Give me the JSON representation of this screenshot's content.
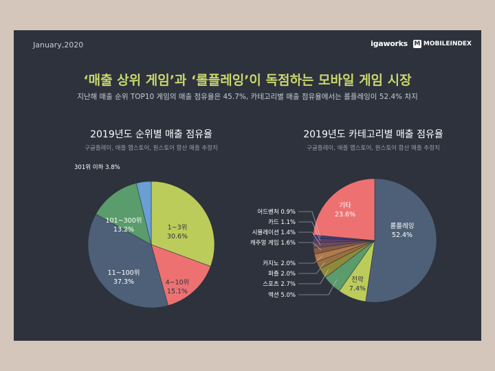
{
  "header": {
    "date": "January,2020",
    "brand_igaworks": "igaworks",
    "brand_mobileindex": "MOBILEINDEX",
    "brand_logo_letter": "M"
  },
  "title": "‘매출 상위 게임’과 ‘롤플레잉’이 독점하는 모바일 게임 시장",
  "subtitle": "지난해 매출 순위 TOP10 게임의 매출 점유율은 45.7%, 카테고리별 매출 점유율에서는 롤플레잉이 52.4% 차지",
  "chart_data": [
    {
      "type": "pie",
      "title": "2019년도 순위별 매출 점유율",
      "note": "구글플레이, 애플 앱스토어, 원스토어 합산 매출 추정치",
      "slices": [
        {
          "label": "1~3위",
          "value": 30.6,
          "display": "30.6%",
          "color": "#bccc5a"
        },
        {
          "label": "4~10위",
          "value": 15.1,
          "display": "15.1%",
          "color": "#ee7171"
        },
        {
          "label": "11~100위",
          "value": 37.3,
          "display": "37.3%",
          "color": "#4e6077"
        },
        {
          "label": "101~300위",
          "value": 13.2,
          "display": "13.2%",
          "color": "#5a9c6b"
        },
        {
          "label": "301위 이하",
          "value": 3.8,
          "display": "3.8%",
          "color": "#6a9fd4"
        }
      ]
    },
    {
      "type": "pie",
      "title": "2019년도 카테고리별 매출 점유율",
      "note": "구글플레이, 애플 앱스토어, 원스토어 합산 매출 추정치",
      "slices": [
        {
          "label": "롤플레잉",
          "value": 52.4,
          "display": "52.4%",
          "color": "#4e6077"
        },
        {
          "label": "전략",
          "value": 7.4,
          "display": "7.4%",
          "color": "#bccc5a"
        },
        {
          "label": "액션",
          "value": 5.0,
          "display": "5.0%",
          "color": "#5a9c6b"
        },
        {
          "label": "스포츠",
          "value": 2.7,
          "display": "2.7%",
          "color": "#8d8a3a"
        },
        {
          "label": "퍼즐",
          "value": 2.0,
          "display": "2.0%",
          "color": "#9a7040"
        },
        {
          "label": "카지노",
          "value": 2.0,
          "display": "2.0%",
          "color": "#b07a4a"
        },
        {
          "label": "캐주얼 게임",
          "value": 1.6,
          "display": "1.6%",
          "color": "#8a5a45"
        },
        {
          "label": "시뮬레이션",
          "value": 1.4,
          "display": "1.4%",
          "color": "#6a4a5a"
        },
        {
          "label": "카드",
          "value": 1.1,
          "display": "1.1%",
          "color": "#5a3f6a"
        },
        {
          "label": "어드벤처",
          "value": 0.9,
          "display": "0.9%",
          "color": "#3f3a7a"
        },
        {
          "label": "기타",
          "value": 23.6,
          "display": "23.6%",
          "color": "#ee7171"
        }
      ]
    }
  ]
}
